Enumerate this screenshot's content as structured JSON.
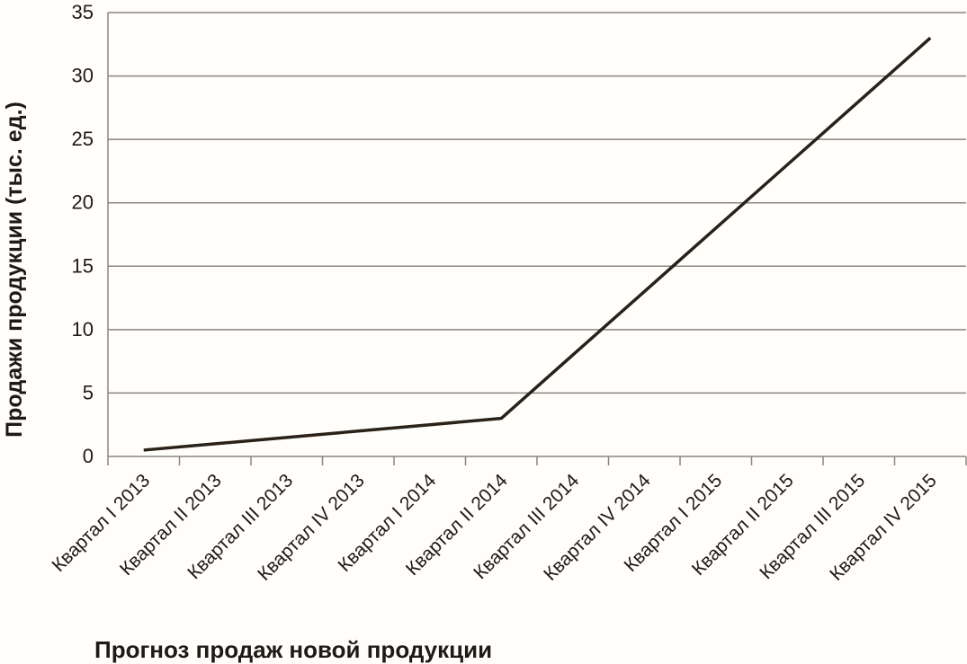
{
  "chart_data": {
    "type": "line",
    "title": "Прогноз продаж новой продукции",
    "y_label": "Продажи продукции (тыс. ед.)",
    "categories": [
      "Квартал I 2013",
      "Квартал II 2013",
      "Квартал III 2013",
      "Квартал IV 2013",
      "Квартал I 2014",
      "Квартал II 2014",
      "Квартал III 2014",
      "Квартал IV 2014",
      "Квартал I 2015",
      "Квартал II 2015",
      "Квартал III 2015",
      "Квартал IV 2015"
    ],
    "values": [
      0.5,
      1,
      1.5,
      2,
      2.5,
      3,
      8,
      13,
      18,
      23,
      28,
      33
    ],
    "color": "#2a2119",
    "ylim": [
      0,
      35
    ],
    "yticks": [
      0,
      5,
      10,
      15,
      20,
      25,
      30,
      35
    ],
    "grid": true
  }
}
